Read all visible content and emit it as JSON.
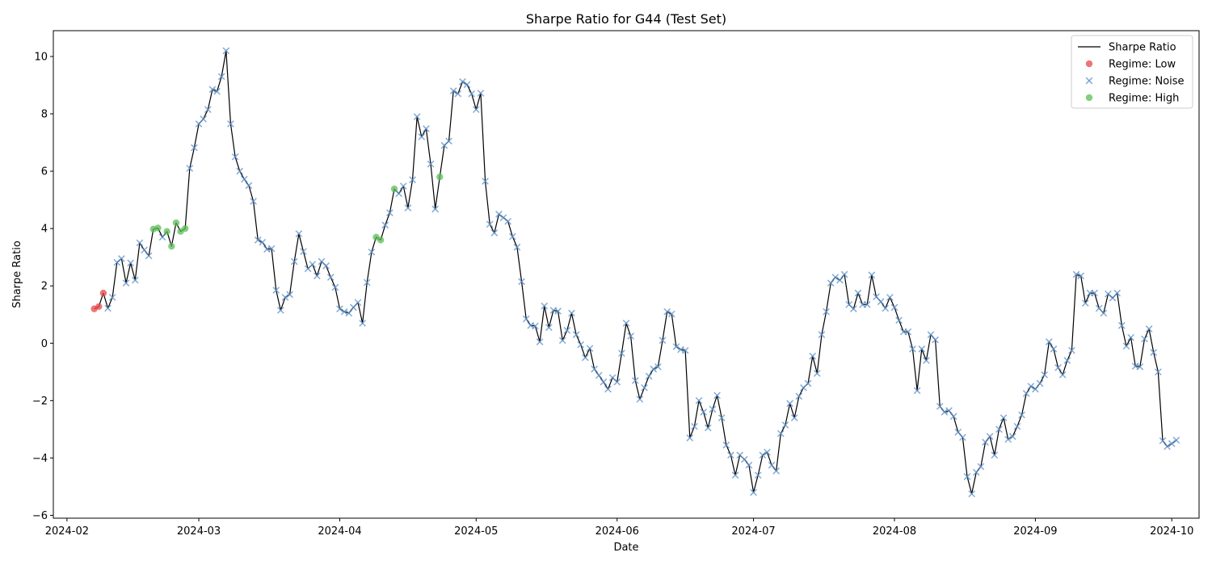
{
  "chart_data": {
    "type": "line",
    "title": "Sharpe Ratio  for G44 (Test Set)",
    "xlabel": "Date",
    "ylabel": "Sharpe Ratio",
    "xlim": [
      "2024-01-29",
      "2024-10-07"
    ],
    "ylim": [
      -6.1,
      10.9
    ],
    "x_ticks": [
      "2024-02",
      "2024-03",
      "2024-04",
      "2024-05",
      "2024-06",
      "2024-07",
      "2024-08",
      "2024-09",
      "2024-10"
    ],
    "y_ticks": [
      -6,
      -4,
      -2,
      0,
      2,
      4,
      6,
      8,
      10
    ],
    "grid": false,
    "legend_position": "top-right",
    "line_color": "#000000",
    "regime_colors": {
      "Low": "#e8474a",
      "Noise": "#5b8ec6",
      "High": "#5cbd55"
    },
    "legend": [
      {
        "label": "Sharpe Ratio",
        "kind": "line"
      },
      {
        "label": "Regime: Low",
        "kind": "Low"
      },
      {
        "label": "Regime: Noise",
        "kind": "Noise"
      },
      {
        "label": "Regime: High",
        "kind": "High"
      }
    ],
    "series": [
      {
        "name": "Sharpe Ratio",
        "start_date": "2024-02-07",
        "values": [
          1.2,
          1.28,
          1.75,
          1.22,
          1.6,
          2.82,
          2.95,
          2.1,
          2.8,
          2.2,
          3.5,
          3.25,
          3.05,
          3.98,
          4.02,
          3.7,
          3.9,
          3.38,
          4.2,
          3.9,
          4.0,
          6.1,
          6.82,
          7.65,
          7.82,
          8.15,
          8.85,
          8.78,
          9.3,
          10.2,
          7.65,
          6.5,
          6.0,
          5.72,
          5.5,
          4.95,
          3.6,
          3.52,
          3.28,
          3.3,
          1.85,
          1.15,
          1.6,
          1.7,
          2.85,
          3.82,
          3.2,
          2.6,
          2.75,
          2.35,
          2.85,
          2.7,
          2.3,
          1.95,
          1.2,
          1.1,
          1.05,
          1.25,
          1.42,
          0.7,
          2.12,
          3.18,
          3.7,
          3.6,
          4.12,
          4.55,
          5.38,
          5.22,
          5.48,
          4.72,
          5.7,
          7.9,
          7.2,
          7.48,
          6.25,
          4.68,
          5.8,
          6.9,
          7.05,
          8.8,
          8.7,
          9.12,
          9.02,
          8.7,
          8.15,
          8.72,
          5.65,
          4.15,
          3.85,
          4.5,
          4.38,
          4.25,
          3.72,
          3.35,
          2.15,
          0.85,
          0.62,
          0.6,
          0.05,
          1.3,
          0.55,
          1.15,
          1.12,
          0.1,
          0.45,
          1.05,
          0.3,
          -0.05,
          -0.5,
          -0.18,
          -0.9,
          -1.12,
          -1.35,
          -1.6,
          -1.2,
          -1.35,
          -0.35,
          0.7,
          0.25,
          -1.3,
          -1.95,
          -1.55,
          -1.15,
          -0.9,
          -0.82,
          0.1,
          1.1,
          1.02,
          -0.12,
          -0.22,
          -0.25,
          -3.3,
          -2.9,
          -2.0,
          -2.4,
          -2.95,
          -2.3,
          -1.82,
          -2.6,
          -3.55,
          -3.9,
          -4.6,
          -3.9,
          -4.05,
          -4.25,
          -5.2,
          -4.6,
          -3.9,
          -3.8,
          -4.25,
          -4.45,
          -3.15,
          -2.85,
          -2.1,
          -2.6,
          -1.85,
          -1.55,
          -1.4,
          -0.45,
          -1.05,
          0.3,
          1.1,
          2.1,
          2.3,
          2.2,
          2.4,
          1.35,
          1.2,
          1.75,
          1.35,
          1.35,
          2.38,
          1.62,
          1.45,
          1.22,
          1.6,
          1.25,
          0.8,
          0.4,
          0.4,
          -0.2,
          -1.65,
          -0.2,
          -0.6,
          0.3,
          0.12,
          -2.2,
          -2.4,
          -2.35,
          -2.55,
          -3.1,
          -3.28,
          -4.65,
          -5.25,
          -4.5,
          -4.3,
          -3.45,
          -3.25,
          -3.9,
          -3.0,
          -2.6,
          -3.35,
          -3.25,
          -2.9,
          -2.5,
          -1.75,
          -1.5,
          -1.6,
          -1.4,
          -1.1,
          0.05,
          -0.2,
          -0.85,
          -1.1,
          -0.6,
          -0.25,
          2.4,
          2.35,
          1.4,
          1.75,
          1.75,
          1.22,
          1.05,
          1.72,
          1.58,
          1.75,
          0.62,
          -0.1,
          0.2,
          -0.8,
          -0.82,
          0.15,
          0.5,
          -0.32,
          -1.0,
          -3.4,
          -3.6,
          -3.5,
          -3.38
        ],
        "regimes": "LLLNNNNNNNNNNHHNHHHHHNNNNNNNNNNNNNNNNNNNNNNNNNNNNNNNNNNNNNNNNNHHNNHNNNNNNNNNHNNNNNNNNNNNNNNNNNNNNNNNNNNNNNNNNNNNNNNNNNNNNNNNNNNNNNNNNNNNNNNNNNNNNNNNNNNNNNNNNNNNNNNNNNNNNNNNNNNNNNNNNNNNNNNNNNNNNNNNNNNNNNNNNNNNNNNNNNNNNNNNNNNNNNNNNNNNNNNNNNNNNNNNN"
      }
    ]
  }
}
